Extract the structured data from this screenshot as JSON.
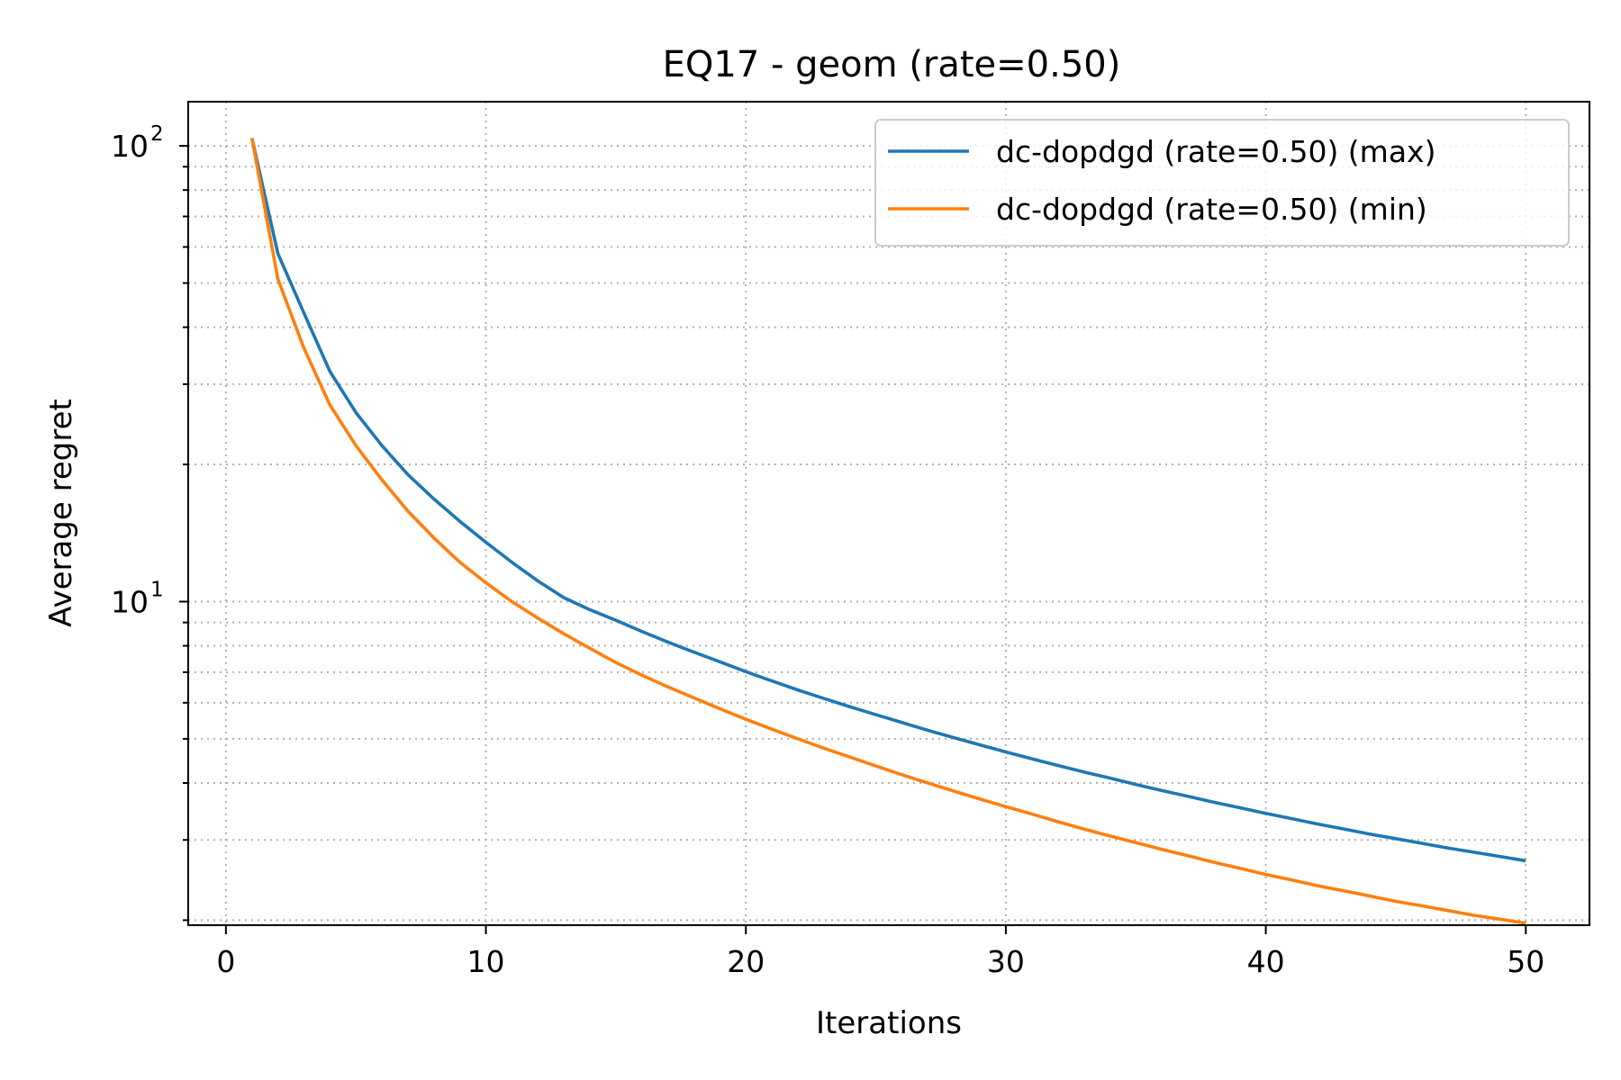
{
  "chart_data": {
    "type": "line",
    "title": "EQ17 - geom (rate=0.50)",
    "xlabel": "Iterations",
    "ylabel": "Average regret",
    "yscale": "log",
    "xlim": [
      -1.45,
      52.45
    ],
    "ylim": [
      1.95,
      125
    ],
    "x_ticks": [
      0,
      10,
      20,
      30,
      40,
      50
    ],
    "x_tick_labels": [
      "0",
      "10",
      "20",
      "30",
      "40",
      "50"
    ],
    "y_major_ticks": [
      {
        "value": 10,
        "base": "10",
        "exponent": "1"
      },
      {
        "value": 100,
        "base": "10",
        "exponent": "2"
      }
    ],
    "y_minor_ticks": [
      2,
      3,
      4,
      5,
      6,
      7,
      8,
      9,
      20,
      30,
      40,
      50,
      60,
      70,
      80,
      90
    ],
    "grid": true,
    "legend_position": "top-right",
    "x": [
      1,
      2,
      3,
      4,
      5,
      6,
      7,
      8,
      9,
      10,
      11,
      12,
      13,
      14,
      15,
      16,
      17,
      18,
      19,
      20,
      21,
      22,
      23,
      24,
      25,
      26,
      27,
      28,
      29,
      30,
      31,
      32,
      33,
      34,
      35,
      36,
      37,
      38,
      39,
      40,
      41,
      42,
      43,
      44,
      45,
      46,
      47,
      48,
      49,
      50
    ],
    "series": [
      {
        "name": "dc-dopdgd (rate=0.50) (max)",
        "color": "#1f77b4",
        "values": [
          104,
          58,
          43,
          32,
          26,
          22,
          19,
          16.8,
          15.0,
          13.5,
          12.2,
          11.1,
          10.2,
          9.6,
          9.1,
          8.6,
          8.15,
          7.75,
          7.38,
          7.02,
          6.7,
          6.4,
          6.13,
          5.88,
          5.65,
          5.43,
          5.22,
          5.03,
          4.85,
          4.68,
          4.52,
          4.37,
          4.23,
          4.1,
          3.97,
          3.85,
          3.74,
          3.63,
          3.53,
          3.43,
          3.34,
          3.25,
          3.17,
          3.09,
          3.02,
          2.95,
          2.88,
          2.82,
          2.76,
          2.7
        ]
      },
      {
        "name": "dc-dopdgd (rate=0.50) (min)",
        "color": "#ff7f0e",
        "values": [
          104,
          51,
          36,
          27,
          22,
          18.5,
          15.8,
          13.8,
          12.2,
          11.0,
          10.0,
          9.2,
          8.5,
          7.9,
          7.35,
          6.9,
          6.5,
          6.15,
          5.82,
          5.52,
          5.25,
          5.0,
          4.77,
          4.56,
          4.36,
          4.17,
          4.0,
          3.84,
          3.69,
          3.55,
          3.42,
          3.29,
          3.17,
          3.06,
          2.96,
          2.86,
          2.77,
          2.68,
          2.6,
          2.52,
          2.45,
          2.38,
          2.32,
          2.26,
          2.2,
          2.15,
          2.1,
          2.05,
          2.01,
          1.97
        ]
      }
    ]
  }
}
